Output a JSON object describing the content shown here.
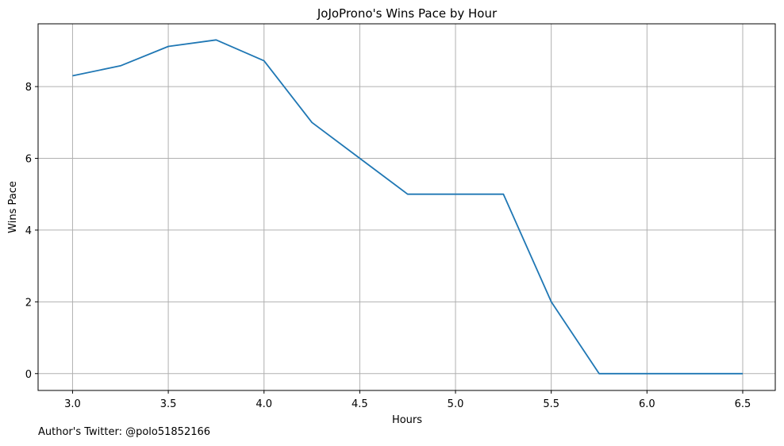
{
  "chart_data": {
    "type": "line",
    "title": "JoJoProno's Wins Pace by Hour",
    "xlabel": "Hours",
    "ylabel": "Wins Pace",
    "xlim": [
      2.82,
      6.67
    ],
    "ylim": [
      -0.47,
      9.75
    ],
    "xticks": [
      3.0,
      3.5,
      4.0,
      4.5,
      5.0,
      5.5,
      6.0,
      6.5
    ],
    "xtick_labels": [
      "3.0",
      "3.5",
      "4.0",
      "4.5",
      "5.0",
      "5.5",
      "6.0",
      "6.5"
    ],
    "yticks": [
      0,
      2,
      4,
      6,
      8
    ],
    "ytick_labels": [
      "0",
      "2",
      "4",
      "6",
      "8"
    ],
    "grid": true,
    "line_color": "#1f77b4",
    "x": [
      3.0,
      3.25,
      3.5,
      3.75,
      4.0,
      4.25,
      4.5,
      4.75,
      5.0,
      5.25,
      5.5,
      5.75,
      6.0,
      6.25,
      6.5
    ],
    "y": [
      8.3,
      8.58,
      9.12,
      9.3,
      8.72,
      7.0,
      6.0,
      5.0,
      5.0,
      5.0,
      2.0,
      0.0,
      0.0,
      0.0,
      0.0
    ]
  },
  "footer": {
    "author_note": "Author's Twitter: @polo51852166"
  }
}
